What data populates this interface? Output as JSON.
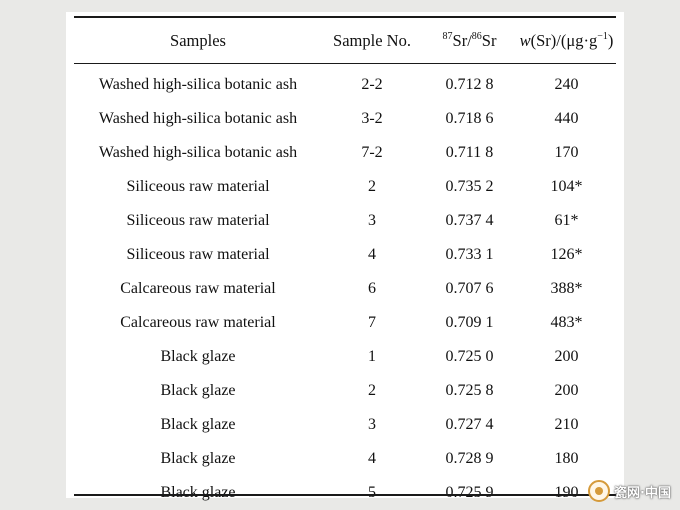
{
  "table": {
    "header": {
      "samples": "Samples",
      "sample_no": "Sample No.",
      "ratio": {
        "sup1": "87",
        "el1": "Sr/",
        "sup2": "86",
        "el2": "Sr"
      },
      "conc": {
        "italic": "w",
        "rest": "(Sr)/(μg·g",
        "sup": "−1",
        "close": ")"
      }
    },
    "rows": [
      {
        "sample": "Washed high-silica botanic ash",
        "no": "2-2",
        "ratio": "0.712 8",
        "conc": "240"
      },
      {
        "sample": "Washed high-silica botanic ash",
        "no": "3-2",
        "ratio": "0.718 6",
        "conc": "440"
      },
      {
        "sample": "Washed high-silica botanic ash",
        "no": "7-2",
        "ratio": "0.711 8",
        "conc": "170"
      },
      {
        "sample": "Siliceous raw material",
        "no": "2",
        "ratio": "0.735 2",
        "conc": "104*"
      },
      {
        "sample": "Siliceous raw material",
        "no": "3",
        "ratio": "0.737 4",
        "conc": "61*"
      },
      {
        "sample": "Siliceous raw material",
        "no": "4",
        "ratio": "0.733 1",
        "conc": "126*"
      },
      {
        "sample": "Calcareous raw material",
        "no": "6",
        "ratio": "0.707 6",
        "conc": "388*"
      },
      {
        "sample": "Calcareous raw material",
        "no": "7",
        "ratio": "0.709 1",
        "conc": "483*"
      },
      {
        "sample": "Black glaze",
        "no": "1",
        "ratio": "0.725 0",
        "conc": "200"
      },
      {
        "sample": "Black glaze",
        "no": "2",
        "ratio": "0.725 8",
        "conc": "200"
      },
      {
        "sample": "Black glaze",
        "no": "3",
        "ratio": "0.727 4",
        "conc": "210"
      },
      {
        "sample": "Black glaze",
        "no": "4",
        "ratio": "0.728 9",
        "conc": "180"
      },
      {
        "sample": "Black glaze",
        "no": "5",
        "ratio": "0.725 9",
        "conc": "190"
      }
    ]
  },
  "watermark": {
    "text": "瓷网·中国",
    "logo_icon": "porcelain-logo-icon",
    "color": "#d59a3a"
  }
}
